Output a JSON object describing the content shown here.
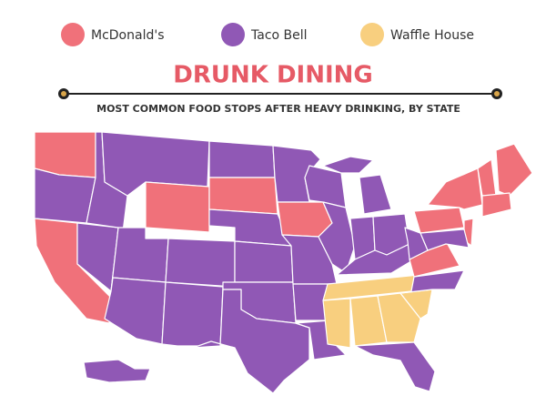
{
  "legend": [
    {
      "label": "McDonald's",
      "color": "#f0717a"
    },
    {
      "label": "Taco Bell",
      "color": "#9058b5"
    },
    {
      "label": "Waffle House",
      "color": "#f8cf7f"
    }
  ],
  "title": "DRUNK DINING",
  "subtitle": "MOST COMMON FOOD STOPS AFTER HEAVY DRINKING, BY STATE"
}
